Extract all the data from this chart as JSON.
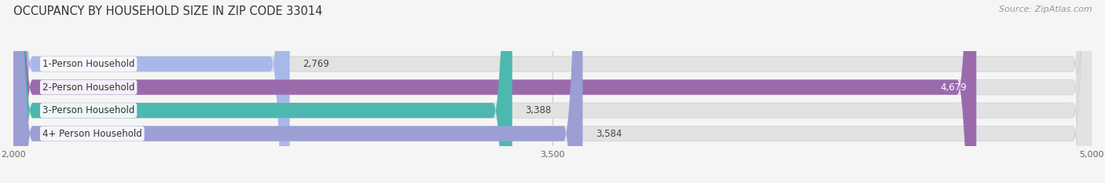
{
  "title": "OCCUPANCY BY HOUSEHOLD SIZE IN ZIP CODE 33014",
  "source": "Source: ZipAtlas.com",
  "categories": [
    "1-Person Household",
    "2-Person Household",
    "3-Person Household",
    "4+ Person Household"
  ],
  "values": [
    2769,
    4679,
    3388,
    3584
  ],
  "bar_colors": [
    "#a8b8e8",
    "#9b6aad",
    "#4db8b0",
    "#9b9fd4"
  ],
  "label_colors": [
    "#444444",
    "#ffffff",
    "#444444",
    "#444444"
  ],
  "bg_color": "#f5f5f5",
  "bar_bg_color": "#e2e2e2",
  "xmin": 2000,
  "xmax": 5000,
  "xticks": [
    2000,
    3500,
    5000
  ],
  "title_fontsize": 10.5,
  "source_fontsize": 8,
  "bar_label_fontsize": 8.5,
  "category_fontsize": 8.5
}
